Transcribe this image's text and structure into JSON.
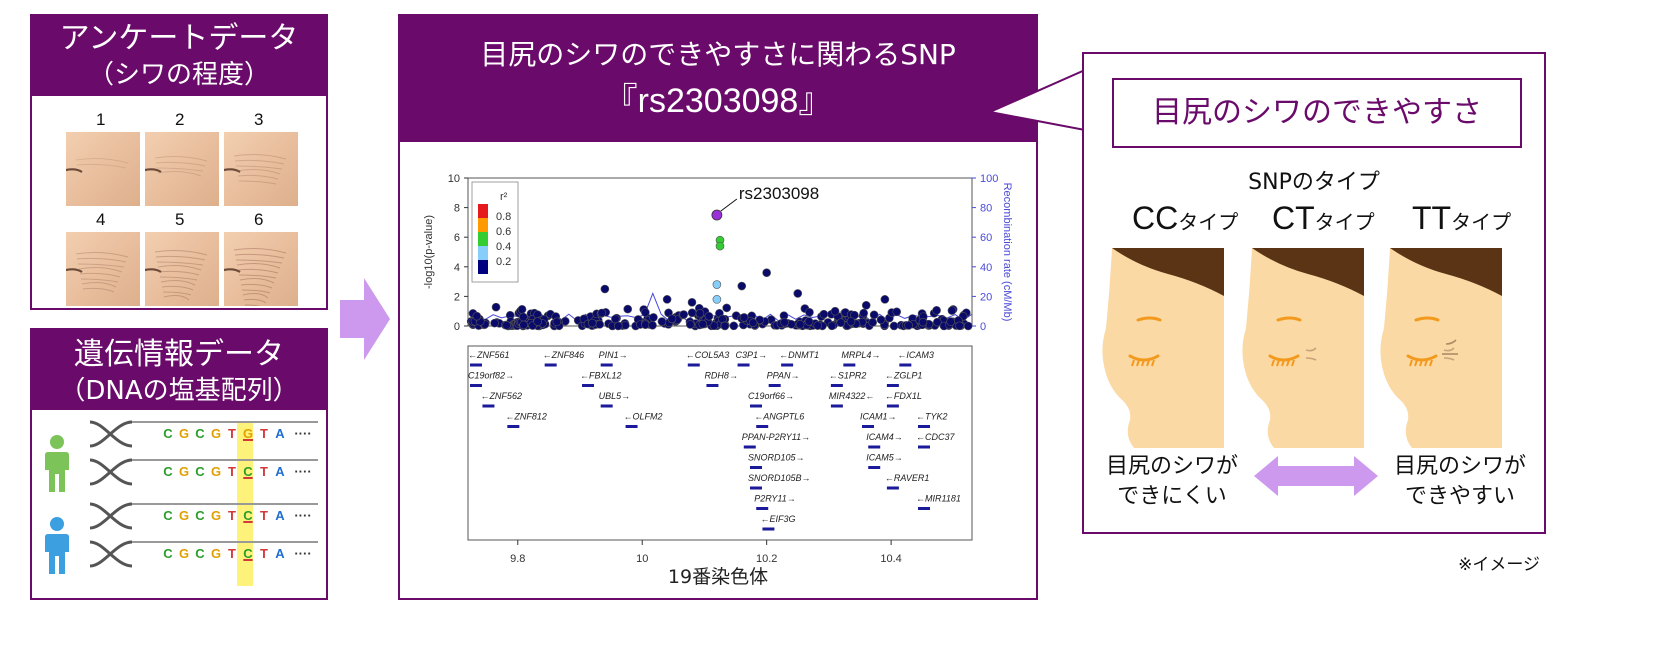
{
  "survey": {
    "title": "アンケートデータ",
    "subtitle": "（シワの程度）",
    "grades": [
      "1",
      "2",
      "3",
      "4",
      "5",
      "6"
    ]
  },
  "genetic": {
    "title": "遺伝情報データ",
    "subtitle": "（DNAの塩基配列）",
    "sequences": [
      {
        "letters": [
          "C",
          "G",
          "C",
          "G",
          "T",
          "G",
          "T",
          "A"
        ],
        "dots": "····"
      },
      {
        "letters": [
          "C",
          "G",
          "C",
          "G",
          "T",
          "C",
          "T",
          "A"
        ],
        "dots": "····"
      },
      {
        "letters": [
          "C",
          "G",
          "C",
          "G",
          "T",
          "C",
          "T",
          "A"
        ],
        "dots": "····"
      },
      {
        "letters": [
          "C",
          "G",
          "C",
          "G",
          "T",
          "C",
          "T",
          "A"
        ],
        "dots": "····"
      }
    ]
  },
  "center": {
    "title_line1": "目尻のシワのできやすさに関わるSNP",
    "title_line2": "『rs2303098』",
    "caption": "19番染色体"
  },
  "chart_data": {
    "type": "scatter",
    "highlight_label": "rs2303098",
    "ylabel": "-log10(p-value)",
    "y2label": "Recombination rate (cM/Mb)",
    "xlim": [
      9.72,
      10.53
    ],
    "ylim": [
      0,
      10
    ],
    "y2lim": [
      0,
      100
    ],
    "xticks": [
      "9.8",
      "10",
      "10.2",
      "10.4"
    ],
    "yticks": [
      "0",
      "2",
      "4",
      "6",
      "8",
      "10"
    ],
    "y2ticks": [
      "0",
      "20",
      "40",
      "60",
      "80",
      "100"
    ],
    "legend_title": "r²",
    "legend_labels": [
      "0.8",
      "0.6",
      "0.4",
      "0.2"
    ],
    "legend_colors": [
      "#e41a1c",
      "#ff9900",
      "#33cc33",
      "#87cefa",
      "#000080"
    ],
    "lead_snp": {
      "x": 10.12,
      "y": 7.5
    },
    "points_green": [
      {
        "x": 10.125,
        "y": 5.8
      },
      {
        "x": 10.125,
        "y": 5.4
      }
    ],
    "points_lightblue": [
      {
        "x": 10.12,
        "y": 2.8
      },
      {
        "x": 10.12,
        "y": 1.8
      }
    ],
    "points_navy_peaks": [
      {
        "x": 9.94,
        "y": 2.5
      },
      {
        "x": 10.04,
        "y": 1.8
      },
      {
        "x": 10.08,
        "y": 1.6
      },
      {
        "x": 10.16,
        "y": 2.7
      },
      {
        "x": 10.2,
        "y": 3.6
      },
      {
        "x": 10.25,
        "y": 2.2
      },
      {
        "x": 10.36,
        "y": 1.4
      },
      {
        "x": 10.39,
        "y": 1.8
      },
      {
        "x": 10.31,
        "y": 1.0
      }
    ],
    "genes": [
      {
        "name": "←ZNF561",
        "x": 9.72,
        "row": 0
      },
      {
        "name": "←ZNF846",
        "x": 9.84,
        "row": 0
      },
      {
        "name": "PIN1→",
        "x": 9.93,
        "row": 0
      },
      {
        "name": "←COL5A3",
        "x": 10.07,
        "row": 0
      },
      {
        "name": "C3P1→",
        "x": 10.15,
        "row": 0
      },
      {
        "name": "←DNMT1",
        "x": 10.22,
        "row": 0
      },
      {
        "name": "MRPL4→",
        "x": 10.32,
        "row": 0
      },
      {
        "name": "←ICAM3",
        "x": 10.41,
        "row": 0
      },
      {
        "name": "C19orf82→",
        "x": 9.72,
        "row": 1
      },
      {
        "name": "←FBXL12",
        "x": 9.9,
        "row": 1
      },
      {
        "name": "RDH8→",
        "x": 10.1,
        "row": 1
      },
      {
        "name": "PPAN→",
        "x": 10.2,
        "row": 1
      },
      {
        "name": "←S1PR2",
        "x": 10.3,
        "row": 1
      },
      {
        "name": "←ZGLP1",
        "x": 10.39,
        "row": 1
      },
      {
        "name": "←ZNF562",
        "x": 9.74,
        "row": 2
      },
      {
        "name": "UBL5→",
        "x": 9.93,
        "row": 2
      },
      {
        "name": "C19orf66→",
        "x": 10.17,
        "row": 2
      },
      {
        "name": "MIR4322←",
        "x": 10.3,
        "row": 2
      },
      {
        "name": "←FDX1L",
        "x": 10.39,
        "row": 2
      },
      {
        "name": "←ZNF812",
        "x": 9.78,
        "row": 3
      },
      {
        "name": "←OLFM2",
        "x": 9.97,
        "row": 3
      },
      {
        "name": "←ANGPTL6",
        "x": 10.18,
        "row": 3
      },
      {
        "name": "ICAM1→",
        "x": 10.35,
        "row": 3
      },
      {
        "name": "←TYK2",
        "x": 10.44,
        "row": 3
      },
      {
        "name": "PPAN-P2RY11→",
        "x": 10.16,
        "row": 4
      },
      {
        "name": "ICAM4→",
        "x": 10.36,
        "row": 4
      },
      {
        "name": "←CDC37",
        "x": 10.44,
        "row": 4
      },
      {
        "name": "SNORD105→",
        "x": 10.17,
        "row": 5
      },
      {
        "name": "ICAM5→",
        "x": 10.36,
        "row": 5
      },
      {
        "name": "SNORD105B→",
        "x": 10.17,
        "row": 6
      },
      {
        "name": "←RAVER1",
        "x": 10.39,
        "row": 6
      },
      {
        "name": "P2RY11→",
        "x": 10.18,
        "row": 7
      },
      {
        "name": "←MIR1181",
        "x": 10.44,
        "row": 7
      },
      {
        "name": "←EIF3G",
        "x": 10.19,
        "row": 8
      }
    ]
  },
  "right": {
    "title": "目尻のシワのできやすさ",
    "snp_type_label": "SNPのタイプ",
    "types": [
      {
        "main": "CC",
        "suffix": "タイプ"
      },
      {
        "main": "CT",
        "suffix": "タイプ"
      },
      {
        "main": "TT",
        "suffix": "タイプ"
      }
    ],
    "left_text_line1": "目尻のシワが",
    "left_text_line2": "できにくい",
    "right_text_line1": "目尻のシワが",
    "right_text_line2": "できやすい",
    "note": "※イメージ"
  },
  "colors": {
    "brand_purple": "#6a0a6a",
    "arrow_lavender": "#cc99ee",
    "highlight_yellow": "#fff27a",
    "person_green": "#7cc35a",
    "person_blue": "#3b9fe0",
    "skin_face": "#fad9a4",
    "hair": "#5a3415",
    "eye_orange": "#f39a1e"
  }
}
